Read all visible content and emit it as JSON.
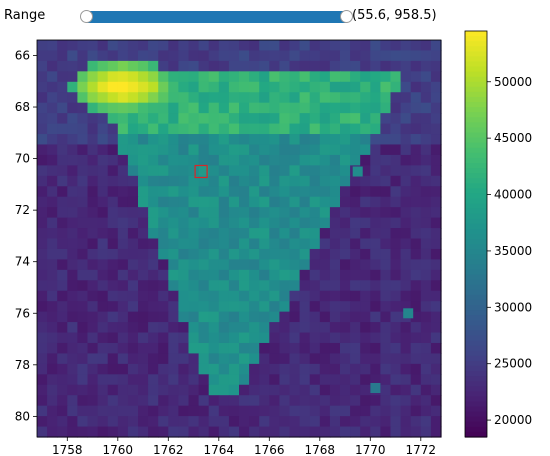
{
  "slider": {
    "label": "Range",
    "value_text": "(55.6, 958.5)",
    "min_value": 55.6,
    "max_value": 958.5
  },
  "colors": {
    "slider_track": "#1f77b4",
    "marker": "#d62728"
  },
  "colorbar": {
    "ticks": [
      "20000",
      "25000",
      "30000",
      "35000",
      "40000",
      "45000",
      "50000"
    ],
    "tick_values": [
      20000,
      25000,
      30000,
      35000,
      40000,
      45000,
      50000
    ],
    "vmin": 18500,
    "vmax": 54500,
    "colormap": "viridis"
  },
  "chart_data": {
    "type": "heatmap",
    "title": "",
    "xlabel": "",
    "ylabel": "",
    "xlim": [
      1756.8,
      1772.8
    ],
    "ylim": [
      80.8,
      65.4
    ],
    "x_ticks": [
      1758,
      1760,
      1762,
      1764,
      1766,
      1768,
      1770,
      1772
    ],
    "y_ticks": [
      66,
      68,
      70,
      72,
      74,
      76,
      78,
      80
    ],
    "x_tick_labels": [
      "1758",
      "1760",
      "1762",
      "1764",
      "1766",
      "1768",
      "1770",
      "1772"
    ],
    "y_tick_labels": [
      "66",
      "68",
      "70",
      "72",
      "74",
      "76",
      "78",
      "80"
    ],
    "y_inverted": true,
    "value_range": [
      18500,
      54500
    ],
    "description_of_values": "V-shaped bright region: peak ~54000 near (1760,67), arms ~40000-45000 along row 68, stem ~33000-38000 narrowing to (1764,78); background ~20000-24000",
    "hot_pixels": [
      {
        "x": 1769.5,
        "y": 70.5,
        "value": 36000
      },
      {
        "x": 1771.5,
        "y": 76.0,
        "value": 35000
      },
      {
        "x": 1770.2,
        "y": 78.9,
        "value": 33000
      }
    ],
    "marker": {
      "x": 1763.3,
      "y": 70.5,
      "shape": "square"
    }
  }
}
